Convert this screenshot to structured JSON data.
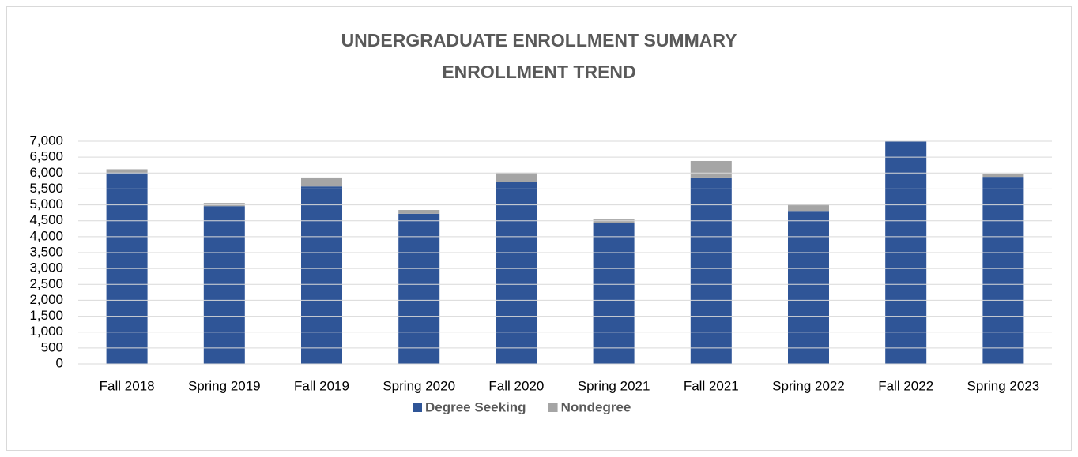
{
  "chart_data": {
    "type": "stacked_bar",
    "title": "UNDERGRADUATE ENROLLMENT SUMMARY",
    "subtitle": "ENROLLMENT TREND",
    "categories": [
      "Fall 2018",
      "Spring 2019",
      "Fall 2019",
      "Spring 2020",
      "Fall 2020",
      "Spring 2021",
      "Fall 2021",
      "Spring 2022",
      "Fall 2022",
      "Spring 2023"
    ],
    "series": [
      {
        "name": "Degree Seeking",
        "color": "#2f5597",
        "values": [
          6000,
          4960,
          5580,
          4720,
          5710,
          4440,
          5860,
          4810,
          7000,
          5880
        ]
      },
      {
        "name": "Nondegree",
        "color": "#a5a5a5",
        "values": [
          120,
          100,
          280,
          120,
          300,
          100,
          520,
          220,
          null,
          100
        ]
      }
    ],
    "ylim": [
      0,
      7000
    ],
    "yticks": [
      0,
      500,
      {
        "value": 1000,
        "label": "1,000"
      },
      {
        "value": 1500,
        "label": "1,500"
      },
      {
        "value": 2000,
        "label": "2,000"
      },
      {
        "value": 2500,
        "label": "2,500"
      },
      {
        "value": 3000,
        "label": "3,000"
      },
      {
        "value": 3500,
        "label": "3,500"
      },
      {
        "value": 4000,
        "label": "4,000"
      },
      {
        "value": 4500,
        "label": "4,500"
      },
      {
        "value": 5000,
        "label": "5,000"
      },
      {
        "value": 5500,
        "label": "5,500"
      },
      {
        "value": 6000,
        "label": "6,000"
      },
      {
        "value": 6500,
        "label": "6,500"
      },
      {
        "value": 7000,
        "label": "7,000"
      }
    ],
    "grid": true,
    "legend": "bottom"
  }
}
